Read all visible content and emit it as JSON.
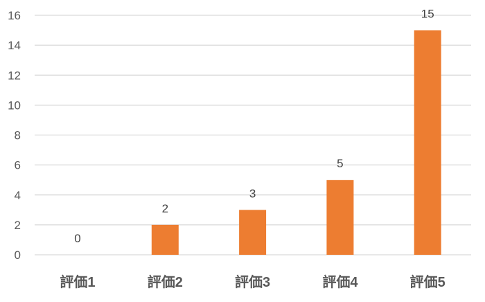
{
  "chart_data": {
    "type": "bar",
    "title": "",
    "xlabel": "",
    "ylabel": "",
    "categories": [
      "評価1",
      "評価2",
      "評価3",
      "評価4",
      "評価5"
    ],
    "values": [
      0,
      2,
      3,
      5,
      15
    ],
    "ylim": [
      0,
      16
    ],
    "yticks": [
      0,
      2,
      4,
      6,
      8,
      10,
      12,
      14,
      16
    ],
    "grid": true,
    "legend": "none",
    "data_labels": true,
    "bar_color": "#ED7D31",
    "grid_color": "#D9D9D9"
  }
}
